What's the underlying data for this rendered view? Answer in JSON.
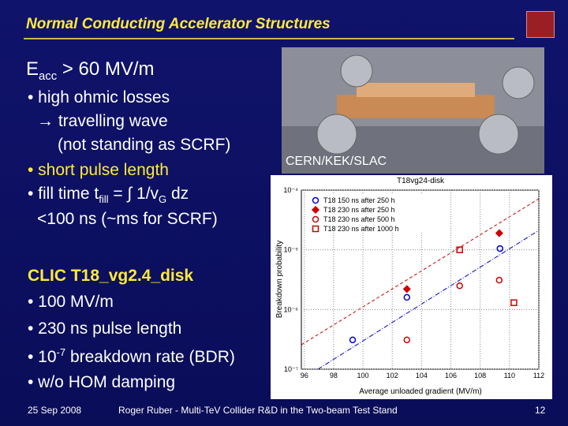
{
  "header": {
    "title": "Normal Conducting Accelerator Structures"
  },
  "left": {
    "heading": [
      "E",
      "acc",
      " > 60 MV/m"
    ],
    "lines": [
      "• high ohmic losses",
      "→ travelling wave",
      "(not standing as SCRF)",
      "• short pulse length"
    ],
    "fill_time": [
      "• fill time t",
      "fill",
      " = ∫ 1/v",
      "G",
      " dz"
    ],
    "fill_note": "<100 ns (~ms for SCRF)"
  },
  "clic": {
    "title": "CLIC T18_vg2.4_disk",
    "bullets": [
      "• 100 MV/m",
      "• 230 ns pulse length"
    ],
    "bdr": [
      "• 10",
      "-7",
      " breakdown rate (BDR)"
    ],
    "last": "• w/o HOM damping"
  },
  "photo": {
    "caption": "CERN/KEK/SLAC"
  },
  "footer": {
    "date": "25 Sep 2008",
    "text": "Roger Ruber - Multi-TeV Collider R&D in the Two-beam Test Stand",
    "page": "12"
  },
  "chart_data": {
    "type": "scatter",
    "title": "T18vg24-disk",
    "xlabel": "Average unloaded gradient (MV/m)",
    "ylabel": "Breakdown probability",
    "xlim": [
      95.8,
      112
    ],
    "xticks": [
      96,
      98,
      100,
      102,
      104,
      106,
      108,
      110,
      112
    ],
    "ylim": [
      1e-07,
      0.0001
    ],
    "log_y": true,
    "grid": true,
    "yticks": [
      {
        "value": 1e-07,
        "label": "10⁻⁷"
      },
      {
        "value": 1e-06,
        "label": "10⁻⁶"
      },
      {
        "value": 1e-05,
        "label": "10⁻⁵"
      },
      {
        "value": 0.0001,
        "label": "10⁻⁴"
      }
    ],
    "series": [
      {
        "name": "T18 150 ns after 250 h",
        "color": "#0000cc",
        "marker": "circle-open",
        "x": [
          99.3,
          103.0,
          109.35
        ],
        "values": [
          3.1e-07,
          1.6e-06,
          1.05e-05
        ]
      },
      {
        "name": "T18 230 ns after 250 h",
        "color": "#cc0000",
        "marker": "diamond",
        "x": [
          103.0,
          109.3
        ],
        "values": [
          2.2e-06,
          1.9e-05
        ]
      },
      {
        "name": "T18 230 ns after 500 h",
        "color": "#cc0000",
        "marker": "circle-open",
        "x": [
          103.0,
          106.6,
          109.3
        ],
        "values": [
          3.1e-07,
          2.5e-06,
          3.1e-06
        ]
      },
      {
        "name": "T18 230 ns after 1000 h",
        "color": "#cc0000",
        "marker": "square-open",
        "x": [
          106.6,
          110.3
        ],
        "values": [
          1e-05,
          1.3e-06
        ]
      }
    ]
  }
}
